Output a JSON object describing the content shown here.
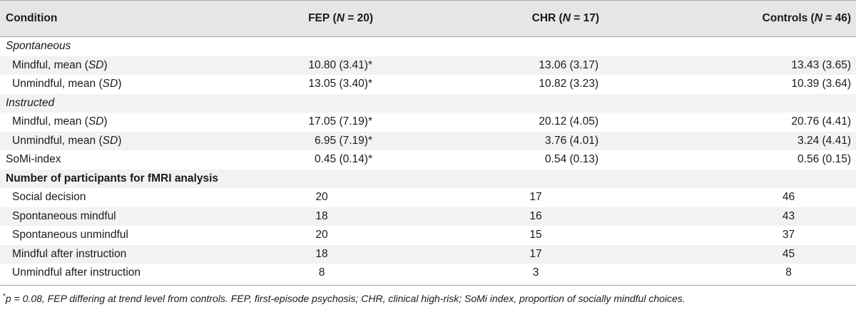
{
  "header": {
    "condition": "Condition",
    "fep": {
      "group": "FEP",
      "n_label": "N",
      "n_value": "= 20)"
    },
    "chr": {
      "group": "CHR",
      "n_label": "N",
      "n_value": "= 17)"
    },
    "controls": {
      "group": "Controls",
      "n_label": "N",
      "n_value": "= 46)"
    }
  },
  "sections": {
    "spontaneous": "Spontaneous",
    "instructed": "Instructed",
    "fmri": "Number of participants for fMRI analysis"
  },
  "measure_labels": {
    "mindful": "Mindful, mean (",
    "unmindful": "Unmindful, mean (",
    "sd": "SD",
    "close": ")"
  },
  "rows": {
    "sp_mindful": {
      "fep": "10.80 (3.41)*",
      "chr": "13.06 (3.17)",
      "controls": "13.43 (3.65)"
    },
    "sp_unmindful": {
      "fep": "13.05 (3.40)*",
      "chr": "10.82 (3.23)",
      "controls": "10.39 (3.64)"
    },
    "in_mindful": {
      "fep": "17.05 (7.19)*",
      "chr": "20.12 (4.05)",
      "controls": "20.76 (4.41)"
    },
    "in_unmindful": {
      "fep": "6.95 (7.19)*",
      "chr": "3.76 (4.01)",
      "controls": "3.24 (4.41)"
    },
    "somi": {
      "label": "SoMi-index",
      "fep": "0.45 (0.14)*",
      "chr": "0.54 (0.13)",
      "controls": "0.56 (0.15)"
    }
  },
  "fmri_rows": [
    {
      "label": "Social decision",
      "fep": "20",
      "chr": "17",
      "controls": "46"
    },
    {
      "label": "Spontaneous mindful",
      "fep": "18",
      "chr": "16",
      "controls": "43"
    },
    {
      "label": "Spontaneous unmindful",
      "fep": "20",
      "chr": "15",
      "controls": "37"
    },
    {
      "label": "Mindful after instruction",
      "fep": "18",
      "chr": "17",
      "controls": "45"
    },
    {
      "label": "Unmindful after instruction",
      "fep": "8",
      "chr": "3",
      "controls": "8"
    }
  ],
  "footnote": {
    "mark": "*",
    "text": "p = 0.08, FEP differing at trend level from controls. FEP, first-episode psychosis; CHR, clinical high-risk; SoMi index, proportion of socially mindful choices."
  }
}
